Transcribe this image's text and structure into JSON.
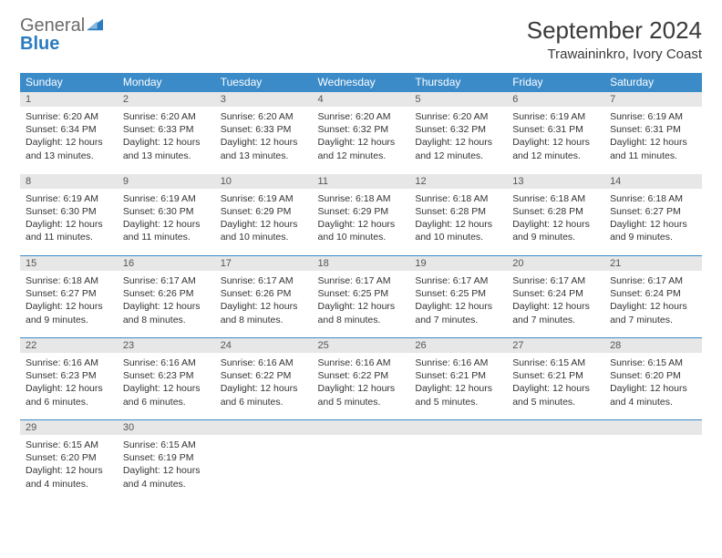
{
  "brand": {
    "word1": "General",
    "word2": "Blue",
    "word1_color": "#6b6b6b",
    "word2_color": "#2b7bbf",
    "icon_color": "#2b7bbf"
  },
  "header": {
    "month_title": "September 2024",
    "location": "Trawaininkro, Ivory Coast"
  },
  "colors": {
    "header_bg": "#3b8bc9",
    "header_text": "#ffffff",
    "daynum_bg": "#e7e7e7",
    "border_color": "#3b8bc9",
    "body_text": "#333333"
  },
  "weekdays": [
    "Sunday",
    "Monday",
    "Tuesday",
    "Wednesday",
    "Thursday",
    "Friday",
    "Saturday"
  ],
  "grid": {
    "rows": 5,
    "cols": 7,
    "leading_blanks": 0,
    "trailing_blanks": 5
  },
  "days": [
    {
      "n": 1,
      "sunrise": "6:20 AM",
      "sunset": "6:34 PM",
      "daylight": "12 hours and 13 minutes."
    },
    {
      "n": 2,
      "sunrise": "6:20 AM",
      "sunset": "6:33 PM",
      "daylight": "12 hours and 13 minutes."
    },
    {
      "n": 3,
      "sunrise": "6:20 AM",
      "sunset": "6:33 PM",
      "daylight": "12 hours and 13 minutes."
    },
    {
      "n": 4,
      "sunrise": "6:20 AM",
      "sunset": "6:32 PM",
      "daylight": "12 hours and 12 minutes."
    },
    {
      "n": 5,
      "sunrise": "6:20 AM",
      "sunset": "6:32 PM",
      "daylight": "12 hours and 12 minutes."
    },
    {
      "n": 6,
      "sunrise": "6:19 AM",
      "sunset": "6:31 PM",
      "daylight": "12 hours and 12 minutes."
    },
    {
      "n": 7,
      "sunrise": "6:19 AM",
      "sunset": "6:31 PM",
      "daylight": "12 hours and 11 minutes."
    },
    {
      "n": 8,
      "sunrise": "6:19 AM",
      "sunset": "6:30 PM",
      "daylight": "12 hours and 11 minutes."
    },
    {
      "n": 9,
      "sunrise": "6:19 AM",
      "sunset": "6:30 PM",
      "daylight": "12 hours and 11 minutes."
    },
    {
      "n": 10,
      "sunrise": "6:19 AM",
      "sunset": "6:29 PM",
      "daylight": "12 hours and 10 minutes."
    },
    {
      "n": 11,
      "sunrise": "6:18 AM",
      "sunset": "6:29 PM",
      "daylight": "12 hours and 10 minutes."
    },
    {
      "n": 12,
      "sunrise": "6:18 AM",
      "sunset": "6:28 PM",
      "daylight": "12 hours and 10 minutes."
    },
    {
      "n": 13,
      "sunrise": "6:18 AM",
      "sunset": "6:28 PM",
      "daylight": "12 hours and 9 minutes."
    },
    {
      "n": 14,
      "sunrise": "6:18 AM",
      "sunset": "6:27 PM",
      "daylight": "12 hours and 9 minutes."
    },
    {
      "n": 15,
      "sunrise": "6:18 AM",
      "sunset": "6:27 PM",
      "daylight": "12 hours and 9 minutes."
    },
    {
      "n": 16,
      "sunrise": "6:17 AM",
      "sunset": "6:26 PM",
      "daylight": "12 hours and 8 minutes."
    },
    {
      "n": 17,
      "sunrise": "6:17 AM",
      "sunset": "6:26 PM",
      "daylight": "12 hours and 8 minutes."
    },
    {
      "n": 18,
      "sunrise": "6:17 AM",
      "sunset": "6:25 PM",
      "daylight": "12 hours and 8 minutes."
    },
    {
      "n": 19,
      "sunrise": "6:17 AM",
      "sunset": "6:25 PM",
      "daylight": "12 hours and 7 minutes."
    },
    {
      "n": 20,
      "sunrise": "6:17 AM",
      "sunset": "6:24 PM",
      "daylight": "12 hours and 7 minutes."
    },
    {
      "n": 21,
      "sunrise": "6:17 AM",
      "sunset": "6:24 PM",
      "daylight": "12 hours and 7 minutes."
    },
    {
      "n": 22,
      "sunrise": "6:16 AM",
      "sunset": "6:23 PM",
      "daylight": "12 hours and 6 minutes."
    },
    {
      "n": 23,
      "sunrise": "6:16 AM",
      "sunset": "6:23 PM",
      "daylight": "12 hours and 6 minutes."
    },
    {
      "n": 24,
      "sunrise": "6:16 AM",
      "sunset": "6:22 PM",
      "daylight": "12 hours and 6 minutes."
    },
    {
      "n": 25,
      "sunrise": "6:16 AM",
      "sunset": "6:22 PM",
      "daylight": "12 hours and 5 minutes."
    },
    {
      "n": 26,
      "sunrise": "6:16 AM",
      "sunset": "6:21 PM",
      "daylight": "12 hours and 5 minutes."
    },
    {
      "n": 27,
      "sunrise": "6:15 AM",
      "sunset": "6:21 PM",
      "daylight": "12 hours and 5 minutes."
    },
    {
      "n": 28,
      "sunrise": "6:15 AM",
      "sunset": "6:20 PM",
      "daylight": "12 hours and 4 minutes."
    },
    {
      "n": 29,
      "sunrise": "6:15 AM",
      "sunset": "6:20 PM",
      "daylight": "12 hours and 4 minutes."
    },
    {
      "n": 30,
      "sunrise": "6:15 AM",
      "sunset": "6:19 PM",
      "daylight": "12 hours and 4 minutes."
    }
  ],
  "labels": {
    "sunrise_prefix": "Sunrise: ",
    "sunset_prefix": "Sunset: ",
    "daylight_prefix": "Daylight: "
  }
}
